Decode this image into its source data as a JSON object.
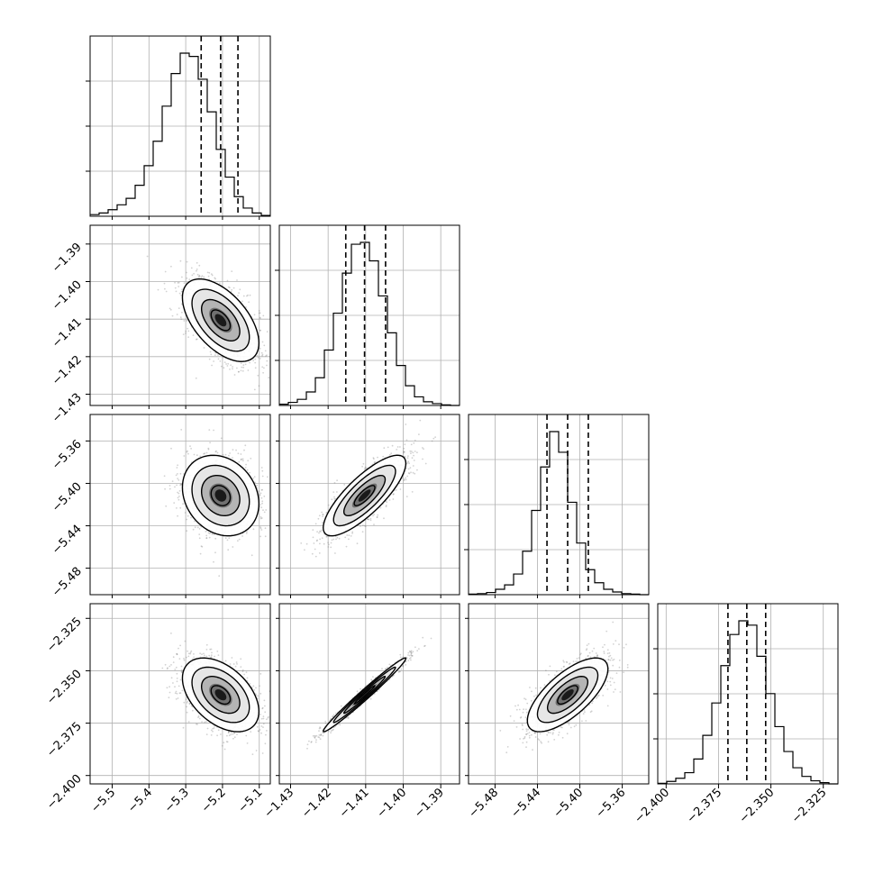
{
  "chart_data": {
    "type": "corner",
    "n_params": 4,
    "grid": true,
    "colors": {
      "line": "#000000",
      "grid": "#b0b0b0",
      "points": "#7f7f7f"
    },
    "params": [
      {
        "lim": [
          -5.56,
          -5.07
        ],
        "ticks": [
          -5.5,
          -5.4,
          -5.3,
          -5.2,
          -5.1
        ],
        "tick_labels": [
          "−5.5",
          "−5.4",
          "−5.3",
          "−5.2",
          "−5.1"
        ],
        "quantiles": [
          -5.258,
          -5.205,
          -5.158
        ],
        "mean": -5.205,
        "sd": 0.052
      },
      {
        "lim": [
          -1.433,
          -1.385
        ],
        "ticks": [
          -1.43,
          -1.42,
          -1.41,
          -1.4,
          -1.39
        ],
        "tick_labels": [
          "−1.43",
          "−1.42",
          "−1.41",
          "−1.40",
          "−1.39"
        ],
        "quantiles": [
          -1.4153,
          -1.4103,
          -1.4047
        ],
        "mean": -1.4103,
        "sd": 0.0055
      },
      {
        "lim": [
          -5.505,
          -5.335
        ],
        "ticks": [
          -5.48,
          -5.44,
          -5.4,
          -5.36
        ],
        "tick_labels": [
          "−5.48",
          "−5.44",
          "−5.40",
          "−5.36"
        ],
        "quantiles": [
          -5.431,
          -5.4115,
          -5.392
        ],
        "mean": -5.4115,
        "sd": 0.019
      },
      {
        "lim": [
          -2.404,
          -2.318
        ],
        "ticks": [
          -2.4,
          -2.375,
          -2.35,
          -2.325
        ],
        "tick_labels": [
          "−2.400",
          "−2.375",
          "−2.350",
          "−2.325"
        ],
        "quantiles": [
          -2.3705,
          -2.3615,
          -2.3525
        ],
        "mean": -2.3615,
        "sd": 0.0088
      }
    ],
    "histograms": [
      {
        "bins": 20,
        "counts": [
          2,
          4,
          8,
          14,
          22,
          38,
          62,
          92,
          135,
          175,
          200,
          196,
          168,
          128,
          82,
          48,
          24,
          10,
          4,
          1
        ]
      },
      {
        "bins": 20,
        "counts": [
          2,
          5,
          10,
          22,
          45,
          90,
          150,
          215,
          262,
          265,
          235,
          178,
          118,
          65,
          32,
          14,
          6,
          3,
          1,
          0
        ]
      },
      {
        "bins": 20,
        "counts": [
          1,
          2,
          4,
          10,
          18,
          38,
          80,
          155,
          235,
          300,
          262,
          170,
          95,
          46,
          22,
          10,
          5,
          2,
          1,
          0
        ]
      },
      {
        "bins": 20,
        "counts": [
          1,
          4,
          9,
          18,
          40,
          78,
          130,
          190,
          240,
          262,
          255,
          205,
          145,
          92,
          52,
          26,
          12,
          5,
          2,
          0
        ]
      }
    ],
    "correlations": [
      {
        "pair": [
          0,
          1
        ],
        "rho": -0.55
      },
      {
        "pair": [
          0,
          2
        ],
        "rho": -0.2
      },
      {
        "pair": [
          1,
          2
        ],
        "rho": 0.8
      },
      {
        "pair": [
          0,
          3
        ],
        "rho": -0.45
      },
      {
        "pair": [
          1,
          3
        ],
        "rho": 0.985
      },
      {
        "pair": [
          2,
          3
        ],
        "rho": 0.7
      }
    ]
  }
}
